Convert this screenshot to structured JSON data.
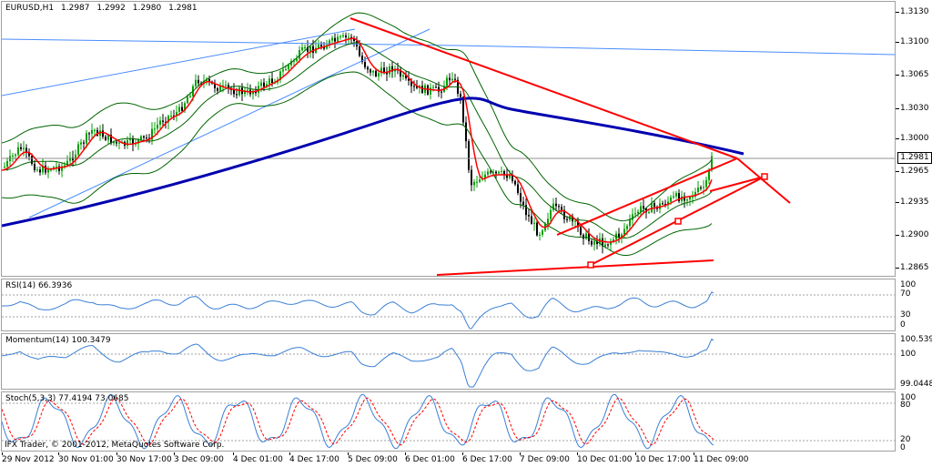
{
  "main_chart": {
    "symbol_label": "EURUSD,H1",
    "ohlc": [
      "1.2987",
      "1.2992",
      "1.2980",
      "1.2981"
    ],
    "current_price": "1.2981",
    "price_labels": [
      "1.3130",
      "1.3100",
      "1.3065",
      "1.3030",
      "1.3000",
      "1.2965",
      "1.2935",
      "1.2900",
      "1.2865"
    ]
  },
  "rsi_panel": {
    "label": "RSI(14) 66.3936",
    "scale": [
      "100",
      "70",
      "30",
      "0"
    ]
  },
  "momentum_panel": {
    "label": "Momentum(14) 100.3479",
    "scale": [
      "100.539",
      "100",
      "99.0448"
    ]
  },
  "stoch_panel": {
    "label": "Stoch(5,3,3) 77.4194 73.0685",
    "scale": [
      "100",
      "80",
      "20",
      "0"
    ]
  },
  "copyright": "IFX Trader, © 2001-2012, MetaQuotes Software Corp.",
  "time_labels": [
    "29 Nov 2012",
    "30 Nov 01:00",
    "30 Nov 17:00",
    "3 Dec 09:00",
    "4 Dec 01:00",
    "4 Dec 17:00",
    "5 Dec 09:00",
    "6 Dec 01:00",
    "6 Dec 17:00",
    "7 Dec 09:00",
    "10 Dec 01:00",
    "10 Dec 17:00",
    "11 Dec 09:00"
  ],
  "colors": {
    "bull_candle": "#00a000",
    "bear_candle": "#000000",
    "sma_fast": "#ff0000",
    "sma_slow": "#0000b0",
    "bollinger": "#006400",
    "trendline_red": "#ff0000",
    "trendline_blue": "#4a8cff",
    "oscillator": "#3a7fd5",
    "signal": "#ff0000"
  }
}
